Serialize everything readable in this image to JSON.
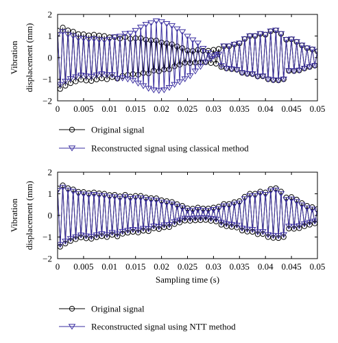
{
  "colors": {
    "original": "#000000",
    "reconstructed": "#3a2ea0",
    "axis": "#000000"
  },
  "chart_data": [
    {
      "type": "line",
      "title": "",
      "xlabel": "",
      "ylabel": [
        "Vibration",
        "displacement (mm)"
      ],
      "xlim": [
        0,
        0.05
      ],
      "ylim": [
        -2,
        2
      ],
      "xticks": [
        "0",
        "0.005",
        "0.01",
        "0.015",
        "0.02",
        "0.025",
        "0.03",
        "0.035",
        "0.04",
        "0.045",
        "0.05"
      ],
      "yticks": [
        "2",
        "1",
        "0",
        "−1",
        "−2"
      ],
      "grid": false,
      "legend_placement": "below",
      "series": [
        {
          "name": "Original signal",
          "marker": "circle",
          "sample_interval": 0.0005,
          "t_start": 0,
          "values": [
            1.25,
            -1.45,
            1.39,
            -1.3,
            1.26,
            -1.18,
            1.2,
            -1.1,
            1.09,
            -1.02,
            1.08,
            -1.06,
            1.03,
            -1.08,
            1.06,
            -1.01,
            1.02,
            -0.96,
            1.0,
            -1.0,
            0.94,
            -0.9,
            0.95,
            -0.97,
            0.88,
            -0.85,
            0.95,
            -0.8,
            0.87,
            -0.76,
            0.9,
            -0.79,
            0.9,
            -0.71,
            0.83,
            -0.73,
            0.8,
            -0.6,
            0.79,
            -0.63,
            0.7,
            -0.55,
            0.66,
            -0.54,
            0.62,
            -0.4,
            0.52,
            -0.33,
            0.44,
            -0.24,
            0.33,
            -0.25,
            0.31,
            -0.23,
            0.36,
            -0.22,
            0.32,
            -0.21,
            0.32,
            -0.25,
            0.36,
            -0.28,
            0.4,
            -0.43,
            0.53,
            -0.5,
            0.53,
            -0.53,
            0.61,
            -0.56,
            0.66,
            -0.7,
            0.86,
            -0.75,
            1.0,
            -0.76,
            1.0,
            -0.87,
            1.1,
            -0.86,
            1.06,
            -1.0,
            1.22,
            -1.04,
            1.26,
            -1.05,
            1.1,
            -1.0,
            0.83,
            -0.61,
            0.85,
            -0.62,
            0.73,
            -0.59,
            0.57,
            -0.5,
            0.44,
            -0.43,
            0.38,
            -0.37,
            0.29
          ]
        },
        {
          "name": "Reconstructed signal using classical method",
          "marker": "triangle-down",
          "sample_interval": 0.0005,
          "t_start": 0,
          "values": [
            1.05,
            -1.25,
            1.19,
            -1.1,
            1.06,
            -0.98,
            1.0,
            -0.9,
            0.89,
            -0.82,
            0.88,
            -0.86,
            0.83,
            -0.88,
            0.86,
            -0.81,
            0.82,
            -0.76,
            0.8,
            -0.8,
            0.84,
            -0.8,
            0.95,
            -0.97,
            0.98,
            -0.95,
            1.1,
            -1.0,
            1.12,
            -1.06,
            1.25,
            -1.19,
            1.4,
            -1.31,
            1.53,
            -1.43,
            1.6,
            -1.5,
            1.69,
            -1.53,
            1.65,
            -1.5,
            1.56,
            -1.39,
            1.47,
            -1.25,
            1.32,
            -1.13,
            1.19,
            -0.99,
            0.98,
            -0.85,
            0.81,
            -0.63,
            0.66,
            -0.42,
            0.42,
            -0.21,
            0.22,
            -0.05,
            0.06,
            0.12,
            0.15,
            -0.38,
            0.53,
            -0.5,
            0.53,
            -0.53,
            0.61,
            -0.56,
            0.66,
            -0.7,
            0.86,
            -0.75,
            1.0,
            -0.76,
            1.0,
            -0.87,
            1.1,
            -0.86,
            1.06,
            -1.0,
            1.22,
            -1.04,
            1.26,
            -1.05,
            1.1,
            -1.0,
            0.83,
            -0.61,
            0.85,
            -0.62,
            0.73,
            -0.59,
            0.57,
            -0.5,
            0.44,
            -0.43,
            0.38,
            -0.37,
            0.29
          ]
        }
      ]
    },
    {
      "type": "line",
      "title": "",
      "xlabel": "Sampling time (s)",
      "ylabel": [
        "Vibration",
        "displacement (mm)"
      ],
      "xlim": [
        0,
        0.05
      ],
      "ylim": [
        -2,
        2
      ],
      "xticks": [
        "0",
        "0.005",
        "0.01",
        "0.015",
        "0.02",
        "0.025",
        "0.03",
        "0.035",
        "0.04",
        "0.045",
        "0.05"
      ],
      "yticks": [
        "2",
        "1",
        "0",
        "−1",
        "−2"
      ],
      "grid": false,
      "legend_placement": "below",
      "series": [
        {
          "name": "Original signal",
          "marker": "circle",
          "sample_interval": 0.0005,
          "t_start": 0,
          "values": [
            1.25,
            -1.45,
            1.39,
            -1.3,
            1.26,
            -1.18,
            1.2,
            -1.1,
            1.09,
            -1.02,
            1.08,
            -1.06,
            1.03,
            -1.08,
            1.06,
            -1.01,
            1.02,
            -0.96,
            1.0,
            -1.0,
            0.94,
            -0.9,
            0.95,
            -0.97,
            0.88,
            -0.85,
            0.95,
            -0.8,
            0.87,
            -0.76,
            0.9,
            -0.79,
            0.9,
            -0.71,
            0.83,
            -0.73,
            0.8,
            -0.6,
            0.79,
            -0.63,
            0.7,
            -0.55,
            0.66,
            -0.54,
            0.62,
            -0.4,
            0.52,
            -0.33,
            0.44,
            -0.24,
            0.33,
            -0.25,
            0.31,
            -0.23,
            0.36,
            -0.22,
            0.32,
            -0.21,
            0.32,
            -0.25,
            0.36,
            -0.28,
            0.4,
            -0.43,
            0.53,
            -0.5,
            0.53,
            -0.53,
            0.61,
            -0.56,
            0.66,
            -0.7,
            0.86,
            -0.75,
            1.0,
            -0.76,
            1.0,
            -0.87,
            1.1,
            -0.86,
            1.06,
            -1.0,
            1.22,
            -1.04,
            1.26,
            -1.05,
            1.1,
            -1.0,
            0.83,
            -0.61,
            0.85,
            -0.62,
            0.73,
            -0.59,
            0.57,
            -0.5,
            0.44,
            -0.43,
            0.38,
            -0.37,
            0.29
          ]
        },
        {
          "name": "Reconstructed signal using NTT method",
          "marker": "triangle-down",
          "sample_interval": 0.0005,
          "t_start": 0,
          "values": [
            1.15,
            -1.35,
            1.29,
            -1.2,
            1.16,
            -1.08,
            1.1,
            -1.0,
            0.99,
            -0.92,
            0.98,
            -0.96,
            0.93,
            -0.98,
            0.96,
            -0.91,
            0.92,
            -0.86,
            0.9,
            -0.9,
            0.84,
            -0.8,
            0.85,
            -0.87,
            0.78,
            -0.75,
            0.85,
            -0.7,
            0.77,
            -0.66,
            0.8,
            -0.69,
            0.8,
            -0.61,
            0.73,
            -0.63,
            0.7,
            -0.5,
            0.69,
            -0.53,
            0.6,
            -0.45,
            0.56,
            -0.44,
            0.52,
            -0.3,
            0.42,
            -0.23,
            0.34,
            -0.14,
            0.23,
            -0.15,
            0.21,
            -0.13,
            0.26,
            -0.12,
            0.22,
            -0.11,
            0.22,
            -0.15,
            0.26,
            -0.18,
            0.3,
            -0.33,
            0.43,
            -0.4,
            0.43,
            -0.43,
            0.51,
            -0.46,
            0.56,
            -0.6,
            0.76,
            -0.65,
            0.9,
            -0.66,
            0.9,
            -0.77,
            1.0,
            -0.76,
            0.96,
            -0.9,
            1.12,
            -0.94,
            1.16,
            -0.95,
            1.0,
            -0.9,
            0.73,
            -0.51,
            0.75,
            -0.52,
            0.63,
            -0.49,
            0.47,
            -0.4,
            0.34,
            -0.33,
            0.28,
            -0.27,
            0.19
          ]
        }
      ]
    }
  ]
}
